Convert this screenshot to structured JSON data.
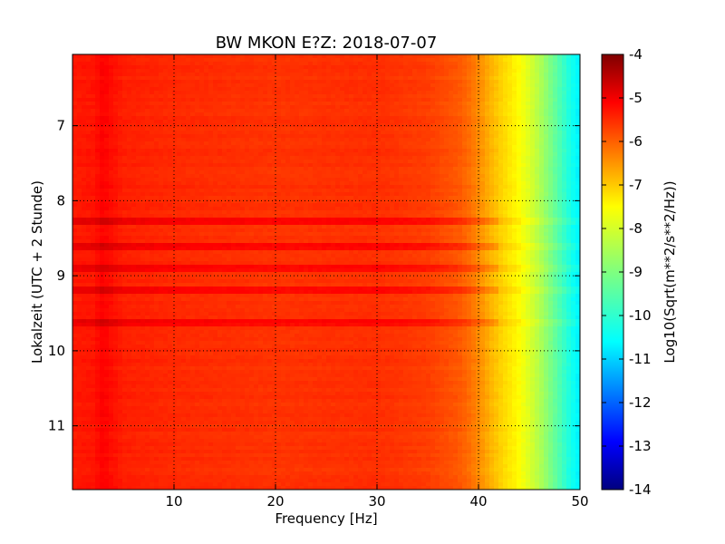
{
  "chart_data": {
    "type": "heatmap",
    "title": "BW MKON E?Z: 2018-07-07",
    "xlabel": "Frequency [Hz]",
    "ylabel": "Lokalzeit (UTC + 2 Stunde)",
    "xlim": [
      0,
      50
    ],
    "ylim": [
      6.05,
      11.85
    ],
    "x_ticks": [
      "10",
      "20",
      "30",
      "40",
      "50"
    ],
    "y_ticks": [
      "7",
      "8",
      "9",
      "10",
      "11"
    ],
    "grid": true,
    "colorbar": {
      "label": "Log10(Sqrt(m**2/s**2/Hz))",
      "range": [
        -14,
        -4
      ],
      "ticks": [
        "-4",
        "-5",
        "-6",
        "-7",
        "-8",
        "-9",
        "-10",
        "-11",
        "-12",
        "-13",
        "-14"
      ],
      "colormap": "jet"
    },
    "spectrum_profile": {
      "frequency_hz": [
        0,
        2,
        3,
        4,
        5,
        10,
        20,
        30,
        35,
        38,
        39,
        40,
        41,
        42,
        43,
        44,
        45,
        46,
        47,
        48,
        49,
        50
      ],
      "log10_psd": [
        -5.5,
        -5.45,
        -5.25,
        -5.4,
        -5.55,
        -5.65,
        -5.75,
        -5.7,
        -5.85,
        -6.1,
        -6.3,
        -6.6,
        -6.95,
        -7.25,
        -7.5,
        -7.75,
        -8.1,
        -8.5,
        -9.0,
        -9.5,
        -10.0,
        -10.4
      ]
    },
    "strong_bands_hours": [
      8.25,
      8.63,
      8.89,
      9.2,
      9.62
    ],
    "colors": {
      "axes_edge": "#000000",
      "grid": "#000000",
      "background": "#ffffff"
    }
  }
}
